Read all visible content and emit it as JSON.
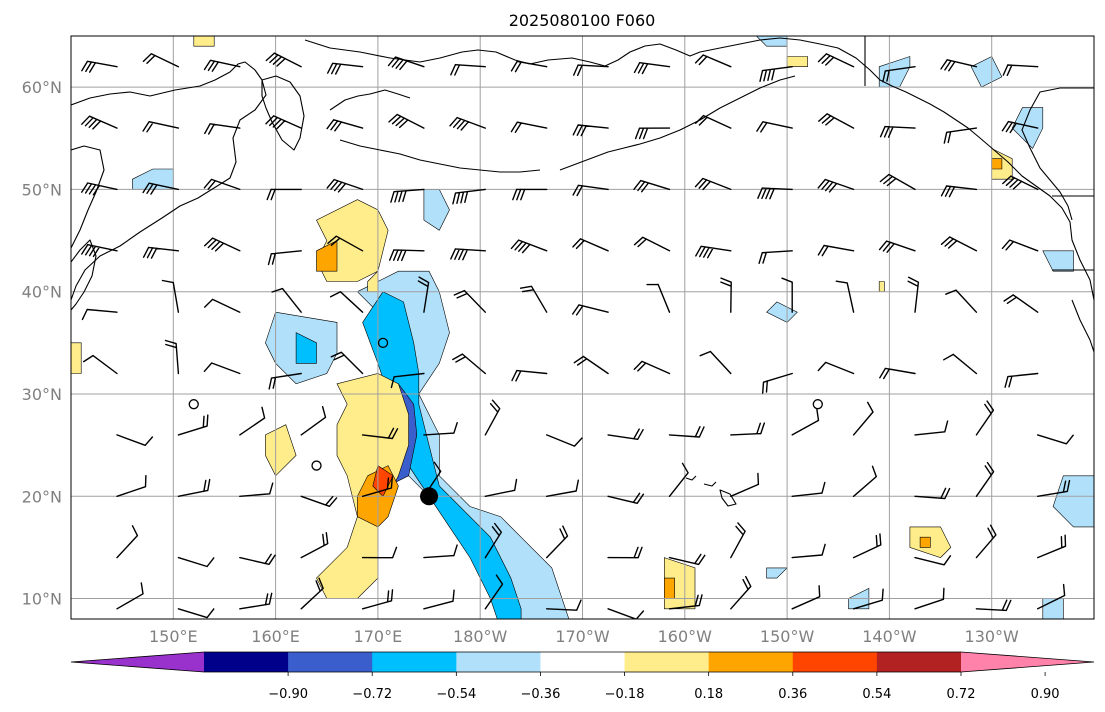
{
  "title": "2025080100 F060",
  "map": {
    "projection": "PlateCarree",
    "lon_range": [
      140,
      240
    ],
    "lat_range": [
      8,
      65
    ],
    "lat_ticks": [
      {
        "value": 10,
        "label": "10°N"
      },
      {
        "value": 20,
        "label": "20°N"
      },
      {
        "value": 30,
        "label": "30°N"
      },
      {
        "value": 40,
        "label": "40°N"
      },
      {
        "value": 50,
        "label": "50°N"
      },
      {
        "value": 60,
        "label": "60°N"
      }
    ],
    "lon_ticks": [
      {
        "value": 150,
        "label": "150°E"
      },
      {
        "value": 160,
        "label": "160°E"
      },
      {
        "value": 170,
        "label": "170°E"
      },
      {
        "value": 180,
        "label": "180°W"
      },
      {
        "value": 190,
        "label": "170°W"
      },
      {
        "value": 200,
        "label": "160°W"
      },
      {
        "value": 210,
        "label": "150°W"
      },
      {
        "value": 220,
        "label": "140°W"
      },
      {
        "value": 230,
        "label": "130°W"
      }
    ],
    "grid": true,
    "marker": {
      "lon": 175,
      "lat": 20,
      "symbol": "filled-circle"
    },
    "wind_barbs": {
      "lon_start": 144.5,
      "lon_step": 6,
      "lat_rows": [
        62,
        56,
        50,
        44,
        38,
        32,
        26,
        20,
        14,
        9
      ],
      "calm_points": [
        [
          170.5,
          35
        ],
        [
          152,
          29
        ],
        [
          164,
          23
        ],
        [
          213,
          29
        ]
      ]
    }
  },
  "colorbar": {
    "levels": [
      -0.9,
      -0.72,
      -0.54,
      -0.36,
      -0.18,
      0.18,
      0.36,
      0.54,
      0.72,
      0.9
    ],
    "tick_labels": [
      "−0.90",
      "−0.72",
      "−0.54",
      "−0.36",
      "−0.18",
      "0.18",
      "0.36",
      "0.54",
      "0.72",
      "0.90"
    ],
    "colors": [
      "#9932cc",
      "#00008b",
      "#3a5fcd",
      "#00bfff",
      "#b0e0fa",
      "#ffffff",
      "#ffec8b",
      "#ffa500",
      "#ff4500",
      "#b22222",
      "#ff82ab"
    ],
    "extend": "both"
  },
  "contours": [
    {
      "level": "#b0e0fa",
      "pts": [
        [
          168,
          40
        ],
        [
          172,
          42
        ],
        [
          175,
          42
        ],
        [
          176,
          40
        ],
        [
          177,
          36
        ],
        [
          176,
          33
        ],
        [
          174,
          30
        ],
        [
          176,
          26
        ],
        [
          176,
          22
        ],
        [
          179,
          19
        ],
        [
          182,
          18
        ],
        [
          184,
          16
        ],
        [
          187,
          13
        ],
        [
          188,
          10
        ],
        [
          189,
          7
        ],
        [
          183,
          7
        ],
        [
          182,
          9
        ],
        [
          181,
          12
        ],
        [
          179,
          15
        ],
        [
          177,
          18
        ],
        [
          175,
          20
        ],
        [
          173,
          22
        ],
        [
          173,
          25
        ],
        [
          172,
          28
        ],
        [
          172,
          31
        ],
        [
          171,
          35
        ],
        [
          170,
          38
        ]
      ]
    },
    {
      "level": "#00bfff",
      "pts": [
        [
          168.5,
          37
        ],
        [
          170.5,
          40
        ],
        [
          172.5,
          39
        ],
        [
          173.5,
          35
        ],
        [
          174,
          32
        ],
        [
          174,
          29
        ],
        [
          175,
          25
        ],
        [
          176,
          21
        ],
        [
          179,
          18
        ],
        [
          181,
          16
        ],
        [
          183,
          12
        ],
        [
          184,
          9
        ],
        [
          184,
          7
        ],
        [
          182,
          7
        ],
        [
          181,
          10
        ],
        [
          179,
          14
        ],
        [
          177,
          17
        ],
        [
          175,
          20
        ],
        [
          173,
          23
        ],
        [
          172,
          27
        ],
        [
          171,
          30
        ],
        [
          170,
          33
        ]
      ]
    },
    {
      "level": "#3a5fcd",
      "pts": [
        [
          170,
          31
        ],
        [
          172,
          31
        ],
        [
          173.5,
          29
        ],
        [
          173.8,
          26
        ],
        [
          173,
          22
        ],
        [
          171,
          21
        ],
        [
          170,
          23
        ],
        [
          169.5,
          26
        ],
        [
          169.5,
          29
        ]
      ]
    },
    {
      "level": "#b0e0fa",
      "pts": [
        [
          160,
          38
        ],
        [
          166,
          37
        ],
        [
          166,
          34
        ],
        [
          165,
          32
        ],
        [
          162,
          31
        ],
        [
          160,
          33
        ],
        [
          159,
          35
        ]
      ]
    },
    {
      "level": "#00bfff",
      "pts": [
        [
          162,
          36
        ],
        [
          164,
          35
        ],
        [
          164,
          33
        ],
        [
          162,
          33
        ]
      ]
    },
    {
      "level": "#b0e0fa",
      "pts": [
        [
          146,
          51
        ],
        [
          148,
          52
        ],
        [
          150,
          52
        ],
        [
          150,
          50
        ],
        [
          148,
          50
        ],
        [
          146,
          50
        ]
      ]
    },
    {
      "level": "#b0e0fa",
      "pts": [
        [
          174.5,
          50
        ],
        [
          176,
          50
        ],
        [
          177,
          48
        ],
        [
          176,
          46
        ],
        [
          174.5,
          47
        ]
      ]
    },
    {
      "level": "#b0e0fa",
      "pts": [
        [
          209,
          39
        ],
        [
          211,
          38
        ],
        [
          210,
          37
        ],
        [
          208,
          38
        ]
      ]
    },
    {
      "level": "#b0e0fa",
      "pts": [
        [
          233,
          58
        ],
        [
          235,
          58
        ],
        [
          235,
          56
        ],
        [
          234,
          54
        ],
        [
          232,
          56
        ]
      ]
    },
    {
      "level": "#b0e0fa",
      "pts": [
        [
          235,
          44
        ],
        [
          238,
          44
        ],
        [
          238,
          42
        ],
        [
          236,
          42
        ]
      ]
    },
    {
      "level": "#b0e0fa",
      "pts": [
        [
          228,
          62
        ],
        [
          230,
          63
        ],
        [
          231,
          61
        ],
        [
          229,
          60
        ]
      ]
    },
    {
      "level": "#b0e0fa",
      "pts": [
        [
          237,
          22
        ],
        [
          240,
          22
        ],
        [
          240,
          17
        ],
        [
          238,
          17
        ],
        [
          236,
          19
        ]
      ]
    },
    {
      "level": "#b0e0fa",
      "pts": [
        [
          208,
          13
        ],
        [
          210,
          13
        ],
        [
          209,
          12
        ],
        [
          208,
          12
        ]
      ]
    },
    {
      "level": "#b0e0fa",
      "pts": [
        [
          219,
          62
        ],
        [
          222,
          63
        ],
        [
          222,
          62
        ],
        [
          221,
          60
        ],
        [
          219,
          60
        ]
      ]
    },
    {
      "level": "#b0e0fa",
      "pts": [
        [
          207,
          65
        ],
        [
          210,
          65
        ],
        [
          210,
          64
        ],
        [
          208,
          64
        ]
      ]
    },
    {
      "level": "#b0e0fa",
      "pts": [
        [
          216,
          10
        ],
        [
          218,
          11
        ],
        [
          218,
          9
        ],
        [
          216,
          9
        ]
      ]
    },
    {
      "level": "#b0e0fa",
      "pts": [
        [
          235,
          10
        ],
        [
          237,
          10
        ],
        [
          237,
          8
        ],
        [
          235,
          8
        ]
      ]
    },
    {
      "level": "#ffec8b",
      "pts": [
        [
          164,
          47
        ],
        [
          168,
          49
        ],
        [
          170,
          48
        ],
        [
          171,
          46
        ],
        [
          170,
          42
        ],
        [
          168,
          41
        ],
        [
          165,
          41
        ],
        [
          164,
          43
        ],
        [
          165,
          45
        ]
      ]
    },
    {
      "level": "#ffa500",
      "pts": [
        [
          164,
          44
        ],
        [
          166,
          45
        ],
        [
          166,
          42
        ],
        [
          164,
          42
        ]
      ]
    },
    {
      "level": "#ffec8b",
      "pts": [
        [
          166,
          31
        ],
        [
          170,
          32
        ],
        [
          172,
          31
        ],
        [
          173,
          28
        ],
        [
          173,
          25
        ],
        [
          172,
          22
        ],
        [
          171,
          20
        ],
        [
          170,
          17
        ],
        [
          170,
          12
        ],
        [
          168,
          10
        ],
        [
          165,
          10
        ],
        [
          164,
          12
        ],
        [
          167,
          15
        ],
        [
          168,
          18
        ],
        [
          167,
          22
        ],
        [
          166,
          24
        ],
        [
          166,
          27
        ],
        [
          167,
          29
        ]
      ]
    },
    {
      "level": "#ffa500",
      "pts": [
        [
          169,
          22
        ],
        [
          171,
          23
        ],
        [
          172,
          21
        ],
        [
          171,
          18
        ],
        [
          170,
          17
        ],
        [
          168,
          18
        ],
        [
          168,
          20
        ]
      ]
    },
    {
      "level": "#ff4500",
      "pts": [
        [
          170,
          23
        ],
        [
          171.5,
          22
        ],
        [
          170.5,
          20
        ],
        [
          169.5,
          21
        ]
      ]
    },
    {
      "level": "#ffec8b",
      "pts": [
        [
          159,
          26
        ],
        [
          161,
          27
        ],
        [
          162,
          24
        ],
        [
          160,
          22
        ],
        [
          159,
          24
        ]
      ]
    },
    {
      "level": "#ffec8b",
      "pts": [
        [
          198,
          14
        ],
        [
          201,
          13
        ],
        [
          201,
          9
        ],
        [
          198,
          9
        ],
        [
          198,
          11
        ]
      ]
    },
    {
      "level": "#ffa500",
      "pts": [
        [
          198,
          12
        ],
        [
          199,
          12
        ],
        [
          199,
          10
        ],
        [
          198,
          10
        ]
      ]
    },
    {
      "level": "#ffec8b",
      "pts": [
        [
          222,
          17
        ],
        [
          225,
          17
        ],
        [
          226,
          15
        ],
        [
          225,
          14
        ],
        [
          222,
          15
        ]
      ]
    },
    {
      "level": "#ffa500",
      "pts": [
        [
          223,
          16
        ],
        [
          224,
          16
        ],
        [
          224,
          15
        ],
        [
          223,
          15
        ]
      ]
    },
    {
      "level": "#ffec8b",
      "pts": [
        [
          230,
          54
        ],
        [
          232,
          53
        ],
        [
          232,
          51
        ],
        [
          230,
          51
        ]
      ]
    },
    {
      "level": "#ffa500",
      "pts": [
        [
          230,
          53
        ],
        [
          231,
          53
        ],
        [
          231,
          52
        ],
        [
          230,
          52
        ]
      ]
    },
    {
      "level": "#ffec8b",
      "pts": [
        [
          210,
          63
        ],
        [
          212,
          63
        ],
        [
          212,
          62
        ],
        [
          210,
          62
        ]
      ]
    },
    {
      "level": "#ffec8b",
      "pts": [
        [
          140,
          35
        ],
        [
          141,
          35
        ],
        [
          141,
          32
        ],
        [
          140,
          32
        ]
      ]
    },
    {
      "level": "#ffec8b",
      "pts": [
        [
          169,
          41
        ],
        [
          170,
          42
        ],
        [
          170,
          40
        ],
        [
          169,
          40
        ]
      ]
    },
    {
      "level": "#ffec8b",
      "pts": [
        [
          219,
          41
        ],
        [
          219.5,
          41
        ],
        [
          219.5,
          40
        ],
        [
          219,
          40
        ]
      ]
    },
    {
      "level": "#ffec8b",
      "pts": [
        [
          152,
          65
        ],
        [
          154,
          65
        ],
        [
          154,
          64
        ],
        [
          152,
          64
        ]
      ]
    }
  ]
}
